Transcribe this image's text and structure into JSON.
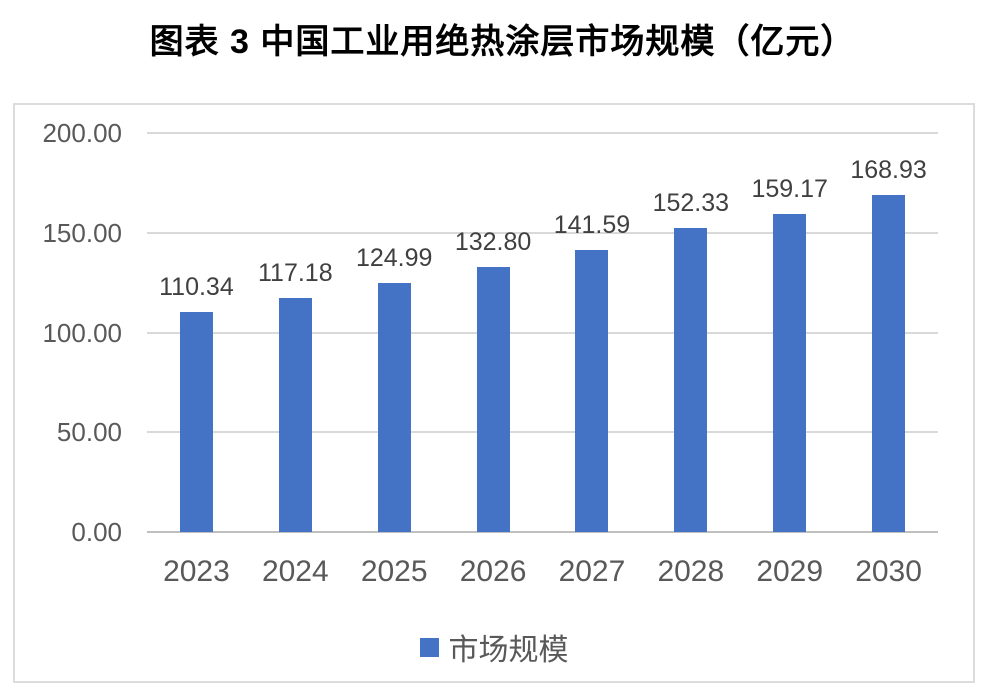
{
  "title": {
    "text": "图表 3 中国工业用绝热涂层市场规模（亿元）",
    "color": "#000000"
  },
  "chart_data": {
    "type": "bar",
    "title": "图表 3 中国工业用绝热涂层市场规模（亿元）",
    "categories": [
      "2023",
      "2024",
      "2025",
      "2026",
      "2027",
      "2028",
      "2029",
      "2030"
    ],
    "series": [
      {
        "name": "市场规模",
        "values": [
          110.34,
          117.18,
          124.99,
          132.8,
          141.59,
          152.33,
          159.17,
          168.93
        ]
      }
    ],
    "value_labels": [
      "110.34",
      "117.18",
      "124.99",
      "132.80",
      "141.59",
      "152.33",
      "159.17",
      "168.93"
    ],
    "xlabel": "",
    "ylabel": "",
    "ylim": [
      0,
      200
    ],
    "yticks": [
      0,
      50,
      100,
      150,
      200
    ],
    "ytick_labels": [
      "0.00",
      "50.00",
      "100.00",
      "150.00",
      "200.00"
    ],
    "grid": true,
    "legend_position": "bottom",
    "colors": {
      "bar": "#4472C4",
      "axis_text": "#595959",
      "data_label": "#404040",
      "gridline": "#D9D9D9",
      "axis_line": "#BFBFBF",
      "chart_border": "#DCDCDC"
    }
  },
  "legend": {
    "label": "市场规模",
    "swatch_color": "#4472C4"
  }
}
